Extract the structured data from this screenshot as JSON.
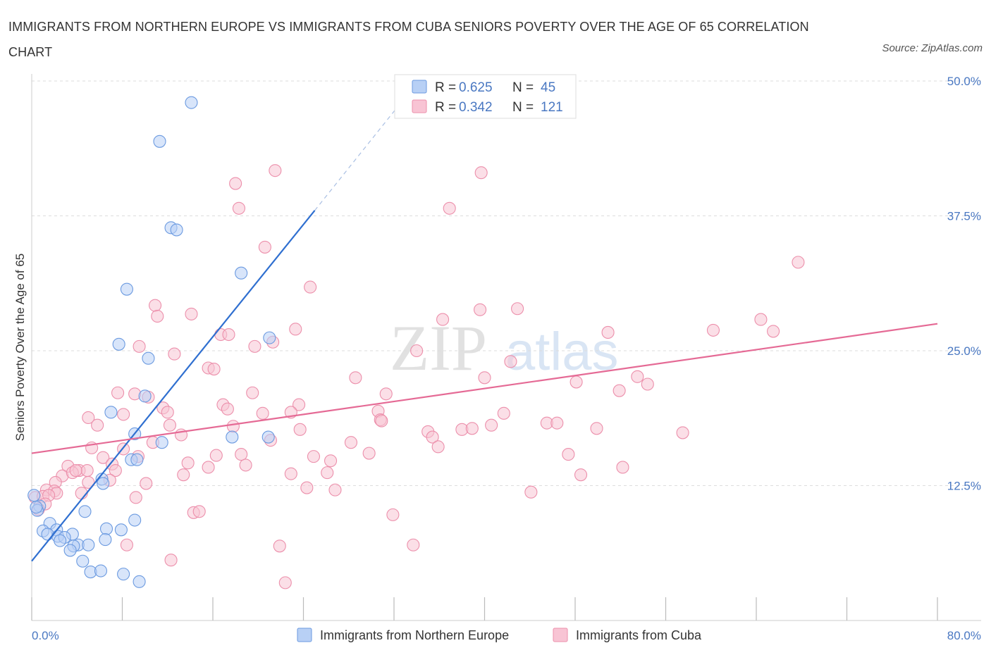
{
  "title": "IMMIGRANTS FROM NORTHERN EUROPE VS IMMIGRANTS FROM CUBA SENIORS POVERTY OVER THE AGE OF 65 CORRELATION CHART",
  "source": "Source: ZipAtlas.com",
  "watermark": {
    "zip": "ZIP",
    "atlas": "atlas"
  },
  "colors": {
    "northern_europe_fill": "#b8d0f5",
    "northern_europe_stroke": "#6b9ae0",
    "northern_europe_line": "#2f6fd0",
    "cuba_fill": "#f8c4d4",
    "cuba_stroke": "#ec8fab",
    "cuba_line": "#e56a95",
    "tick_text": "#4a78c2",
    "grid": "#dddddd"
  },
  "legend_box": {
    "rows": [
      {
        "r_label": "R = ",
        "r_value": "0.625",
        "n_label": "N = ",
        "n_value": "45"
      },
      {
        "r_label": "R = ",
        "r_value": "0.342",
        "n_label": "N = ",
        "n_value": "121"
      }
    ]
  },
  "chart_data": {
    "type": "scatter",
    "xlabel": "",
    "ylabel": "Seniors Poverty Over the Age of 65",
    "xlim": [
      0,
      80
    ],
    "ylim": [
      0,
      50
    ],
    "x_tick_labels": [
      "0.0%",
      "80.0%"
    ],
    "y_ticks": [
      {
        "value": 12.5,
        "label": "12.5%"
      },
      {
        "value": 25,
        "label": "25.0%"
      },
      {
        "value": 37.5,
        "label": "37.5%"
      },
      {
        "value": 50,
        "label": "50.0%"
      }
    ],
    "grid": "horizontal dashed",
    "legend_position": "bottom",
    "series": [
      {
        "name": "Immigrants from Northern Europe",
        "R": 0.625,
        "N": 45,
        "trend": {
          "x0": 0,
          "y0": 5.5,
          "x1": 25,
          "y1": 38,
          "dashed_to_x": 33,
          "dashed_to_y": 48.5
        },
        "points": [
          [
            14.1,
            48.0
          ],
          [
            11.3,
            44.4
          ],
          [
            12.3,
            36.4
          ],
          [
            12.8,
            36.2
          ],
          [
            18.5,
            32.2
          ],
          [
            8.4,
            30.7
          ],
          [
            7.7,
            25.6
          ],
          [
            10.3,
            24.3
          ],
          [
            21.0,
            26.2
          ],
          [
            10.0,
            20.8
          ],
          [
            7.0,
            19.3
          ],
          [
            9.1,
            17.3
          ],
          [
            11.5,
            16.5
          ],
          [
            17.7,
            17.0
          ],
          [
            20.9,
            17.0
          ],
          [
            8.8,
            14.9
          ],
          [
            9.3,
            14.9
          ],
          [
            6.2,
            13.1
          ],
          [
            6.3,
            12.7
          ],
          [
            0.2,
            11.6
          ],
          [
            0.7,
            10.6
          ],
          [
            0.5,
            10.2
          ],
          [
            4.7,
            10.1
          ],
          [
            9.1,
            9.3
          ],
          [
            1.6,
            9.0
          ],
          [
            6.6,
            8.5
          ],
          [
            7.9,
            8.4
          ],
          [
            1.0,
            8.3
          ],
          [
            2.2,
            8.4
          ],
          [
            1.4,
            8.0
          ],
          [
            3.6,
            8.0
          ],
          [
            2.3,
            7.8
          ],
          [
            2.9,
            7.7
          ],
          [
            6.5,
            7.5
          ],
          [
            2.5,
            7.4
          ],
          [
            4.1,
            7.0
          ],
          [
            5.0,
            7.0
          ],
          [
            3.7,
            6.9
          ],
          [
            3.4,
            6.5
          ],
          [
            4.5,
            5.5
          ],
          [
            5.2,
            4.5
          ],
          [
            6.1,
            4.6
          ],
          [
            8.1,
            4.3
          ],
          [
            9.5,
            3.6
          ],
          [
            0.4,
            10.5
          ]
        ]
      },
      {
        "name": "Immigrants from Cuba",
        "R": 0.342,
        "N": 121,
        "trend": {
          "x0": 0,
          "y0": 15.5,
          "x1": 80,
          "y1": 27.5
        },
        "points": [
          [
            21.5,
            41.7
          ],
          [
            18.0,
            40.5
          ],
          [
            39.7,
            41.5
          ],
          [
            18.3,
            38.2
          ],
          [
            36.9,
            38.2
          ],
          [
            20.6,
            34.6
          ],
          [
            67.7,
            33.2
          ],
          [
            24.6,
            30.9
          ],
          [
            10.9,
            29.2
          ],
          [
            11.1,
            28.2
          ],
          [
            14.1,
            28.4
          ],
          [
            39.6,
            28.8
          ],
          [
            42.9,
            28.9
          ],
          [
            16.7,
            26.5
          ],
          [
            17.4,
            26.5
          ],
          [
            23.3,
            27.0
          ],
          [
            36.3,
            27.9
          ],
          [
            50.9,
            26.7
          ],
          [
            60.2,
            26.9
          ],
          [
            64.4,
            27.9
          ],
          [
            65.5,
            26.8
          ],
          [
            9.5,
            25.4
          ],
          [
            19.7,
            25.4
          ],
          [
            21.3,
            25.8
          ],
          [
            34.0,
            25.0
          ],
          [
            12.6,
            24.7
          ],
          [
            42.3,
            24.0
          ],
          [
            15.6,
            23.4
          ],
          [
            16.1,
            23.3
          ],
          [
            28.6,
            22.5
          ],
          [
            40.0,
            22.5
          ],
          [
            48.1,
            22.1
          ],
          [
            53.5,
            22.6
          ],
          [
            54.4,
            21.9
          ],
          [
            7.6,
            21.1
          ],
          [
            9.1,
            21.0
          ],
          [
            10.3,
            20.7
          ],
          [
            19.5,
            21.1
          ],
          [
            31.3,
            21.0
          ],
          [
            51.9,
            21.3
          ],
          [
            23.6,
            20.0
          ],
          [
            16.9,
            20.0
          ],
          [
            11.6,
            19.7
          ],
          [
            12.0,
            19.3
          ],
          [
            17.3,
            19.6
          ],
          [
            20.4,
            19.2
          ],
          [
            22.9,
            19.3
          ],
          [
            30.6,
            19.4
          ],
          [
            41.7,
            19.2
          ],
          [
            5.0,
            18.8
          ],
          [
            8.1,
            19.1
          ],
          [
            5.8,
            18.1
          ],
          [
            12.2,
            18.1
          ],
          [
            17.8,
            18.0
          ],
          [
            30.8,
            18.6
          ],
          [
            30.9,
            18.5
          ],
          [
            38.0,
            17.7
          ],
          [
            38.9,
            17.8
          ],
          [
            40.6,
            18.1
          ],
          [
            45.5,
            18.3
          ],
          [
            46.4,
            18.3
          ],
          [
            49.9,
            17.8
          ],
          [
            57.5,
            17.4
          ],
          [
            23.7,
            17.7
          ],
          [
            35.0,
            17.5
          ],
          [
            35.4,
            17.0
          ],
          [
            13.2,
            17.2
          ],
          [
            21.1,
            16.7
          ],
          [
            10.7,
            16.5
          ],
          [
            28.2,
            16.5
          ],
          [
            35.9,
            16.1
          ],
          [
            5.3,
            16.0
          ],
          [
            8.1,
            15.9
          ],
          [
            6.3,
            15.1
          ],
          [
            9.4,
            15.2
          ],
          [
            16.3,
            15.3
          ],
          [
            18.5,
            15.4
          ],
          [
            24.9,
            15.2
          ],
          [
            29.8,
            15.5
          ],
          [
            47.4,
            15.4
          ],
          [
            13.8,
            14.6
          ],
          [
            7.1,
            14.5
          ],
          [
            15.6,
            14.2
          ],
          [
            18.9,
            14.4
          ],
          [
            26.4,
            14.8
          ],
          [
            52.2,
            14.2
          ],
          [
            3.2,
            14.3
          ],
          [
            4.2,
            13.9
          ],
          [
            4.9,
            13.9
          ],
          [
            2.7,
            13.4
          ],
          [
            3.6,
            13.7
          ],
          [
            3.9,
            13.9
          ],
          [
            7.4,
            13.9
          ],
          [
            13.4,
            13.5
          ],
          [
            22.9,
            13.6
          ],
          [
            26.1,
            13.7
          ],
          [
            48.5,
            13.5
          ],
          [
            2.1,
            12.8
          ],
          [
            5.0,
            12.8
          ],
          [
            6.9,
            13.0
          ],
          [
            10.1,
            12.7
          ],
          [
            24.3,
            12.3
          ],
          [
            26.8,
            12.1
          ],
          [
            44.1,
            11.9
          ],
          [
            1.3,
            12.1
          ],
          [
            2.0,
            12.0
          ],
          [
            2.2,
            11.8
          ],
          [
            4.4,
            11.8
          ],
          [
            9.2,
            11.4
          ],
          [
            0.3,
            11.4
          ],
          [
            1.0,
            11.5
          ],
          [
            1.5,
            11.6
          ],
          [
            1.2,
            10.8
          ],
          [
            0.6,
            10.3
          ],
          [
            14.3,
            10.0
          ],
          [
            14.8,
            10.1
          ],
          [
            31.9,
            9.8
          ],
          [
            8.4,
            7.0
          ],
          [
            21.9,
            6.9
          ],
          [
            33.7,
            7.0
          ],
          [
            12.3,
            5.6
          ],
          [
            22.4,
            3.5
          ]
        ]
      }
    ]
  },
  "bottom_legend": [
    {
      "label": "Immigrants from Northern Europe"
    },
    {
      "label": "Immigrants from Cuba"
    }
  ]
}
